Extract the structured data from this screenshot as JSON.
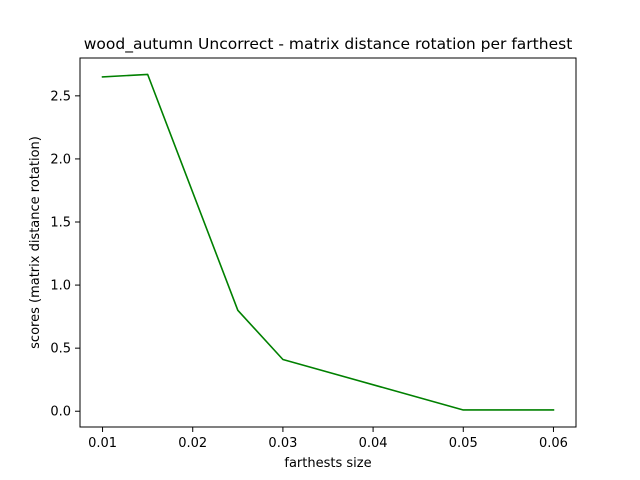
{
  "chart_data": {
    "type": "line",
    "title": "wood_autumn Uncorrect - matrix distance rotation per farthest",
    "xlabel": "farthests size",
    "ylabel": "scores (matrix distance rotation)",
    "x": [
      0.01,
      0.015,
      0.025,
      0.03,
      0.05,
      0.06
    ],
    "series": [
      {
        "values": [
          2.65,
          2.67,
          0.8,
          0.41,
          0.01,
          0.01
        ],
        "color": "#008000"
      }
    ],
    "xlim": [
      0.0075,
      0.0625
    ],
    "ylim": [
      -0.125,
      2.8
    ],
    "xticks": [
      0.01,
      0.02,
      0.03,
      0.04,
      0.05,
      0.06
    ],
    "xtick_labels": [
      "0.01",
      "0.02",
      "0.03",
      "0.04",
      "0.05",
      "0.06"
    ],
    "yticks": [
      0.0,
      0.5,
      1.0,
      1.5,
      2.0,
      2.5
    ],
    "ytick_labels": [
      "0.0",
      "0.5",
      "1.0",
      "1.5",
      "2.0",
      "2.5"
    ],
    "grid": false,
    "legend": "none"
  }
}
